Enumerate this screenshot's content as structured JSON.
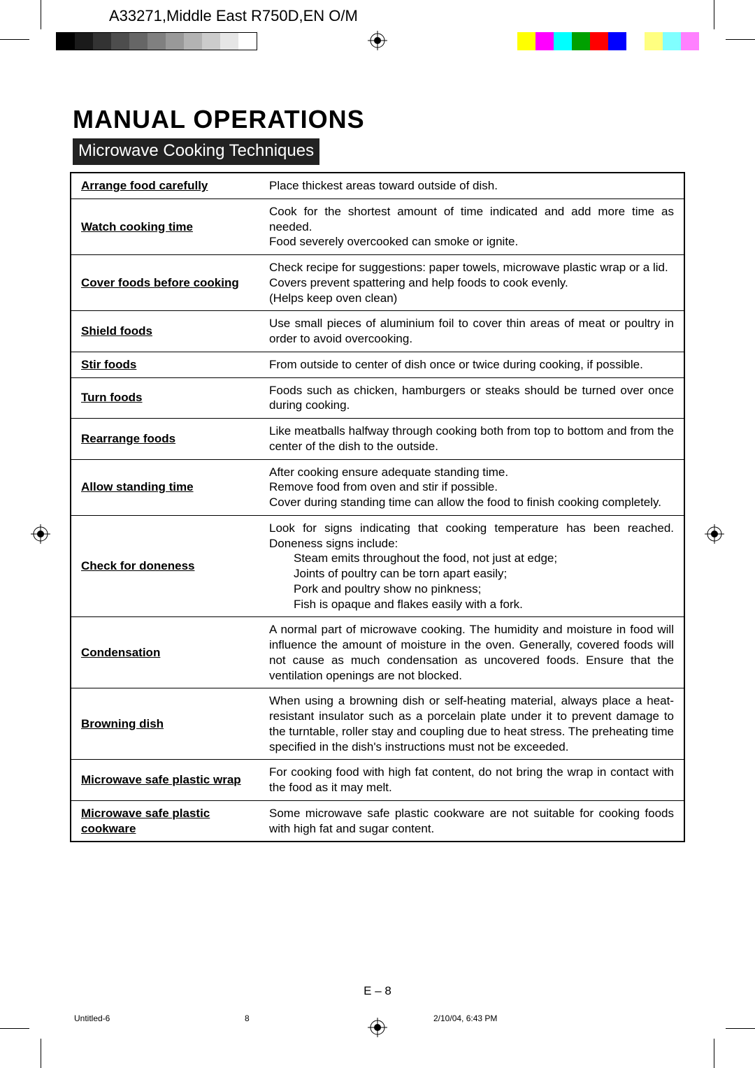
{
  "header_label": "A33271,Middle East R750D,EN O/M",
  "title": "MANUAL OPERATIONS",
  "subtitle": "Microwave Cooking Techniques",
  "grayscale_swatches": [
    "#000000",
    "#1a1a1a",
    "#333333",
    "#4d4d4d",
    "#666666",
    "#808080",
    "#999999",
    "#b3b3b3",
    "#cccccc",
    "#e6e6e6",
    "#ffffff"
  ],
  "color_swatches": [
    "#ffff00",
    "#ff00ff",
    "#00ffff",
    "#00a000",
    "#ff0000",
    "#0000ff",
    "#ffffff",
    "#ffff80",
    "#80ffff",
    "#ff80ff"
  ],
  "rows": [
    {
      "label": "Arrange food carefully",
      "desc": "Place thickest areas toward outside of dish."
    },
    {
      "label": "Watch cooking time",
      "desc": "Cook for the shortest amount of time indicated and add more time as needed.\nFood severely overcooked can smoke or ignite."
    },
    {
      "label": "Cover foods before cooking",
      "desc": "Check recipe for suggestions: paper towels, microwave plastic wrap or a lid.\nCovers prevent spattering and help foods to cook evenly.\n(Helps keep oven clean)"
    },
    {
      "label": "Shield foods",
      "desc": "Use small pieces of aluminium foil to cover thin areas of meat or poultry in order to avoid overcooking."
    },
    {
      "label": "Stir foods",
      "desc": "From outside to center of dish once or twice during cooking, if possible."
    },
    {
      "label": "Turn foods",
      "desc": "Foods such as chicken, hamburgers or steaks should be turned over once during cooking."
    },
    {
      "label": "Rearrange foods",
      "desc": "Like meatballs halfway through cooking both from top to bottom and from the center of the dish to the outside."
    },
    {
      "label": "Allow standing time",
      "desc": "After cooking ensure adequate standing time.\nRemove food from oven and stir if possible.\nCover during standing time can allow the food to finish cooking completely."
    },
    {
      "label": "Check for doneness",
      "desc_intro": "Look for signs indicating that cooking temperature has been reached. Doneness signs include:",
      "desc_items": [
        "Steam emits throughout the food, not just at edge;",
        "Joints of poultry can be torn apart easily;",
        "Pork and poultry show no pinkness;",
        "Fish is opaque and flakes easily with a fork."
      ]
    },
    {
      "label": "Condensation",
      "desc": "A normal part of microwave cooking. The humidity and moisture in food will influence the amount of moisture in the oven. Generally, covered foods will not cause as much condensation as uncovered foods. Ensure that the ventilation openings are not blocked."
    },
    {
      "label": "Browning dish",
      "desc": "When using a browning dish or self-heating material, always place a heat-resistant insulator such as a porcelain plate under it to prevent damage to the turntable, roller stay and coupling due to heat stress. The preheating time specified in the dish's instructions must not be exceeded."
    },
    {
      "label": "Microwave safe plastic wrap",
      "desc": "For cooking food with high fat content, do not bring the wrap in contact with the food as it may melt."
    },
    {
      "label": "Microwave safe plastic\ncookware",
      "desc": "Some microwave safe plastic cookware are not suitable for cooking foods with high fat and sugar content."
    }
  ],
  "page_number": "E – 8",
  "footer": {
    "left": "Untitled-6",
    "mid": "8",
    "right": "2/10/04, 6:43 PM"
  }
}
